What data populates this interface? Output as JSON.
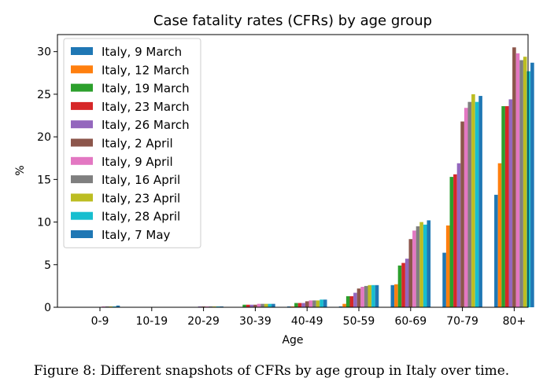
{
  "chart_data": {
    "type": "bar",
    "title": "Case fatality rates (CFRs) by age group",
    "xlabel": "Age",
    "ylabel": "%",
    "ylim": [
      0,
      32
    ],
    "yticks": [
      0,
      5,
      10,
      15,
      20,
      25,
      30
    ],
    "grid": false,
    "legend_position": "top-left",
    "categories": [
      "0-9",
      "10-19",
      "20-29",
      "30-39",
      "40-49",
      "50-59",
      "60-69",
      "70-79",
      "80+"
    ],
    "series": [
      {
        "name": "Italy, 9 March",
        "color": "#1f77b4",
        "values": [
          0.0,
          0.0,
          0.0,
          0.0,
          0.1,
          0.1,
          2.6,
          6.4,
          13.2
        ]
      },
      {
        "name": "Italy, 12 March",
        "color": "#ff7f0e",
        "values": [
          0.0,
          0.0,
          0.0,
          0.0,
          0.1,
          0.4,
          2.7,
          9.6,
          16.9
        ]
      },
      {
        "name": "Italy, 19 March",
        "color": "#2ca02c",
        "values": [
          0.0,
          0.0,
          0.0,
          0.3,
          0.5,
          1.3,
          4.9,
          15.3,
          23.6
        ]
      },
      {
        "name": "Italy, 23 March",
        "color": "#d62728",
        "values": [
          0.0,
          0.0,
          0.0,
          0.3,
          0.5,
          1.3,
          5.2,
          15.6,
          23.6
        ]
      },
      {
        "name": "Italy, 26 March",
        "color": "#9467bd",
        "values": [
          0.0,
          0.0,
          0.1,
          0.3,
          0.5,
          1.7,
          5.7,
          16.9,
          24.4
        ]
      },
      {
        "name": "Italy, 2 April",
        "color": "#8c564b",
        "values": [
          0.0,
          0.0,
          0.1,
          0.3,
          0.7,
          2.2,
          8.0,
          21.8,
          30.5
        ]
      },
      {
        "name": "Italy, 9 April",
        "color": "#e377c2",
        "values": [
          0.1,
          0.0,
          0.1,
          0.4,
          0.8,
          2.4,
          9.0,
          23.4,
          29.8
        ]
      },
      {
        "name": "Italy, 16 April",
        "color": "#7f7f7f",
        "values": [
          0.1,
          0.0,
          0.1,
          0.4,
          0.8,
          2.5,
          9.5,
          24.1,
          29.0
        ]
      },
      {
        "name": "Italy, 23 April",
        "color": "#bcbd22",
        "values": [
          0.1,
          0.0,
          0.1,
          0.4,
          0.8,
          2.6,
          10.0,
          25.0,
          29.4
        ]
      },
      {
        "name": "Italy, 28 April",
        "color": "#17becf",
        "values": [
          0.1,
          0.0,
          0.1,
          0.4,
          0.9,
          2.6,
          9.7,
          24.1,
          27.7
        ]
      },
      {
        "name": "Italy, 7 May",
        "color": "#1f77b4",
        "values": [
          0.2,
          0.0,
          0.1,
          0.4,
          0.9,
          2.6,
          10.2,
          24.8,
          28.7
        ]
      }
    ]
  },
  "caption": "Figure 8: Different snapshots of CFRs by age group in Italy over time.",
  "watermark": "@ ..."
}
